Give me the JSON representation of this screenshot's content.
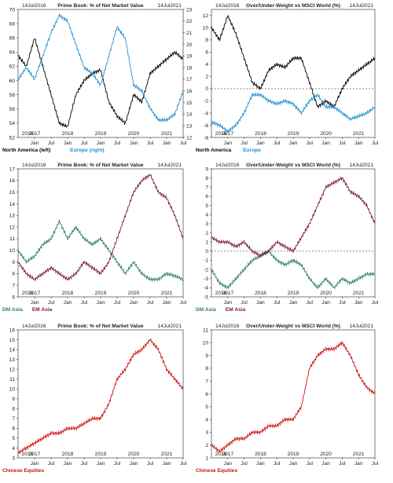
{
  "chart_data": [
    {
      "type": "line",
      "title": "Prime Book: % of Net Market Value",
      "start_label": "14Jul2016",
      "end_label": "14Jul2021",
      "ylim": [
        52,
        70
      ],
      "yticks": [
        52,
        54,
        56,
        58,
        60,
        62,
        64,
        66,
        68,
        70
      ],
      "ylim_right": [
        12,
        23
      ],
      "yticks_right": [
        12,
        13,
        14,
        15,
        16,
        17,
        18,
        19,
        20,
        21,
        22,
        23
      ],
      "x_year_labels": [
        "2016",
        "2017",
        "2018",
        "2019",
        "2020",
        "2021"
      ],
      "x_month_labels": [
        "Jan",
        "Jul",
        "Jan",
        "Jul",
        "Jan",
        "Jul",
        "Jan",
        "Jul",
        "Jan",
        "Jul"
      ],
      "series": [
        {
          "name": "North America (left)",
          "color": "#000000",
          "axis": "left",
          "x": [
            "2016-07",
            "2016-10",
            "2017-01",
            "2017-04",
            "2017-07",
            "2017-10",
            "2018-01",
            "2018-04",
            "2018-07",
            "2018-10",
            "2019-01",
            "2019-04",
            "2019-07",
            "2019-10",
            "2020-01",
            "2020-04",
            "2020-07",
            "2020-10",
            "2021-01",
            "2021-04",
            "2021-07"
          ],
          "values": [
            63.5,
            62,
            66,
            62,
            58,
            54,
            53.5,
            58,
            60,
            61,
            61.5,
            57,
            55,
            54,
            58,
            57,
            61,
            62,
            63,
            64,
            63
          ]
        },
        {
          "name": "Europe (right)",
          "color": "#1f8fd0",
          "axis": "right",
          "x": [
            "2016-07",
            "2016-10",
            "2017-01",
            "2017-04",
            "2017-07",
            "2017-10",
            "2018-01",
            "2018-04",
            "2018-07",
            "2018-10",
            "2019-01",
            "2019-04",
            "2019-07",
            "2019-10",
            "2020-01",
            "2020-04",
            "2020-07",
            "2020-10",
            "2021-01",
            "2021-04",
            "2021-07"
          ],
          "values": [
            17,
            18,
            17,
            19,
            21,
            22.5,
            22,
            20,
            18,
            17.5,
            16.5,
            19,
            21.5,
            20.5,
            16.5,
            16,
            14.5,
            13.5,
            13.5,
            14,
            16
          ]
        }
      ]
    },
    {
      "type": "line",
      "title": "Over/Under-Weight vs MSCI World (%)",
      "start_label": "14Jul2016",
      "end_label": "14Jul2021",
      "ylim": [
        -8,
        13
      ],
      "yticks": [
        -8,
        -6,
        -4,
        -2,
        0,
        2,
        4,
        6,
        8,
        10,
        12
      ],
      "x_year_labels": [
        "2016",
        "2017",
        "2018",
        "2019",
        "2020",
        "2021"
      ],
      "x_month_labels": [
        "Jan",
        "Jul",
        "Jan",
        "Jul",
        "Jan",
        "Jul",
        "Jan",
        "Jul",
        "Jan",
        "Jul"
      ],
      "series": [
        {
          "name": "North America",
          "color": "#000000",
          "x": [
            "2016-07",
            "2016-10",
            "2017-01",
            "2017-04",
            "2017-07",
            "2017-10",
            "2018-01",
            "2018-04",
            "2018-07",
            "2018-10",
            "2019-01",
            "2019-04",
            "2019-07",
            "2019-10",
            "2020-01",
            "2020-04",
            "2020-07",
            "2020-10",
            "2021-01",
            "2021-04",
            "2021-07"
          ],
          "values": [
            10,
            8,
            12,
            9,
            5,
            1,
            0,
            3,
            4,
            3.5,
            5,
            5,
            1,
            -3,
            -2,
            -3,
            0,
            2,
            3,
            4,
            5
          ]
        },
        {
          "name": "Europe",
          "color": "#1f8fd0",
          "x": [
            "2016-07",
            "2016-10",
            "2017-01",
            "2017-04",
            "2017-07",
            "2017-10",
            "2018-01",
            "2018-04",
            "2018-07",
            "2018-10",
            "2019-01",
            "2019-04",
            "2019-07",
            "2019-10",
            "2020-01",
            "2020-04",
            "2020-07",
            "2020-10",
            "2021-01",
            "2021-04",
            "2021-07"
          ],
          "values": [
            -5.5,
            -6,
            -7,
            -6,
            -4,
            -1,
            -1,
            -2,
            -2.5,
            -2,
            -2.5,
            -4,
            -2,
            -1,
            -3,
            -3,
            -4,
            -5,
            -4.5,
            -4,
            -3
          ]
        }
      ]
    },
    {
      "type": "line",
      "title": "Prime Book: % of Net Market Value",
      "start_label": "14Jul2016",
      "end_label": "14Jul2021",
      "ylim": [
        6,
        17
      ],
      "yticks": [
        6,
        7,
        8,
        9,
        10,
        11,
        12,
        13,
        14,
        15,
        16,
        17
      ],
      "x_year_labels": [
        "2016",
        "2017",
        "2018",
        "2019",
        "2020",
        "2021"
      ],
      "x_month_labels": [
        "Jan",
        "Jul",
        "Jan",
        "Jul",
        "Jan",
        "Jul",
        "Jan",
        "Jul",
        "Jan",
        "Jul"
      ],
      "series": [
        {
          "name": "DM Asia",
          "color": "#2e7d6e",
          "x": [
            "2016-07",
            "2016-10",
            "2017-01",
            "2017-04",
            "2017-07",
            "2017-10",
            "2018-01",
            "2018-04",
            "2018-07",
            "2018-10",
            "2019-01",
            "2019-04",
            "2019-07",
            "2019-10",
            "2020-01",
            "2020-04",
            "2020-07",
            "2020-10",
            "2021-01",
            "2021-04",
            "2021-07"
          ],
          "values": [
            10,
            9,
            9.5,
            10.5,
            11,
            12.5,
            11,
            12,
            11,
            10.5,
            11,
            10,
            9,
            8,
            9,
            8,
            7.5,
            7.5,
            8,
            7.8,
            7.5
          ]
        },
        {
          "name": "EM Asia",
          "color": "#7a1f2b",
          "x": [
            "2016-07",
            "2016-10",
            "2017-01",
            "2017-04",
            "2017-07",
            "2017-10",
            "2018-01",
            "2018-04",
            "2018-07",
            "2018-10",
            "2019-01",
            "2019-04",
            "2019-07",
            "2019-10",
            "2020-01",
            "2020-04",
            "2020-07",
            "2020-10",
            "2021-01",
            "2021-04",
            "2021-07"
          ],
          "values": [
            9,
            8,
            7.5,
            8,
            8.5,
            8,
            7.5,
            8,
            9,
            8.5,
            8,
            9,
            11,
            13,
            15,
            16,
            16.5,
            15,
            14.5,
            13,
            11
          ]
        }
      ]
    },
    {
      "type": "line",
      "title": "Over/Under-Weight vs MSCI World (%)",
      "start_label": "14Jul2016",
      "end_label": "14Jul2021",
      "ylim": [
        -5,
        9
      ],
      "yticks": [
        -5,
        -4,
        -3,
        -2,
        -1,
        0,
        1,
        2,
        3,
        4,
        5,
        6,
        7,
        8,
        9
      ],
      "x_year_labels": [
        "2016",
        "2017",
        "2018",
        "2019",
        "2020",
        "2021"
      ],
      "x_month_labels": [
        "Jan",
        "Jul",
        "Jan",
        "Jul",
        "Jan",
        "Jul",
        "Jan",
        "Jul",
        "Jan",
        "Jul"
      ],
      "series": [
        {
          "name": "DM Asia",
          "color": "#2e7d6e",
          "x": [
            "2016-07",
            "2016-10",
            "2017-01",
            "2017-04",
            "2017-07",
            "2017-10",
            "2018-01",
            "2018-04",
            "2018-07",
            "2018-10",
            "2019-01",
            "2019-04",
            "2019-07",
            "2019-10",
            "2020-01",
            "2020-04",
            "2020-07",
            "2020-10",
            "2021-01",
            "2021-04",
            "2021-07"
          ],
          "values": [
            -2,
            -3.5,
            -4,
            -3,
            -2,
            -1,
            -0.5,
            0,
            -1,
            -1.5,
            -1,
            -1.5,
            -3,
            -4,
            -3,
            -4,
            -3,
            -3.5,
            -3,
            -2.5,
            -2.5
          ]
        },
        {
          "name": "EM Asia",
          "color": "#7a1f2b",
          "x": [
            "2016-07",
            "2016-10",
            "2017-01",
            "2017-04",
            "2017-07",
            "2017-10",
            "2018-01",
            "2018-04",
            "2018-07",
            "2018-10",
            "2019-01",
            "2019-04",
            "2019-07",
            "2019-10",
            "2020-01",
            "2020-04",
            "2020-07",
            "2020-10",
            "2021-01",
            "2021-04",
            "2021-07"
          ],
          "values": [
            1.5,
            1,
            1,
            0.5,
            1,
            0,
            -0.5,
            0,
            1,
            0.5,
            0,
            1.5,
            3,
            5,
            7,
            7.5,
            8,
            6.5,
            6,
            5,
            3
          ]
        }
      ]
    },
    {
      "type": "line",
      "title": "Prime Book: % of Net Market Value",
      "start_label": "14Jul2016",
      "end_label": "14Jul2021",
      "ylim": [
        3,
        16
      ],
      "yticks": [
        3,
        4,
        5,
        6,
        7,
        8,
        9,
        10,
        11,
        12,
        13,
        14,
        15,
        16
      ],
      "x_year_labels": [
        "2016",
        "2017",
        "2018",
        "2019",
        "2020",
        "2021"
      ],
      "x_month_labels": [
        "Jan",
        "Jul",
        "Jan",
        "Jul",
        "Jan",
        "Jul",
        "Jan",
        "Jul",
        "Jan",
        "Jul"
      ],
      "series": [
        {
          "name": "Chinese Equities",
          "color": "#cc1111",
          "x": [
            "2016-07",
            "2016-10",
            "2017-01",
            "2017-04",
            "2017-07",
            "2017-10",
            "2018-01",
            "2018-04",
            "2018-07",
            "2018-10",
            "2019-01",
            "2019-04",
            "2019-07",
            "2019-10",
            "2020-01",
            "2020-04",
            "2020-07",
            "2020-10",
            "2021-01",
            "2021-04",
            "2021-07"
          ],
          "values": [
            3.5,
            4,
            4.5,
            5,
            5.5,
            5.5,
            6,
            6,
            6.5,
            7,
            7,
            8.5,
            11,
            12,
            13.5,
            14,
            15,
            14,
            12,
            11,
            10
          ]
        }
      ]
    },
    {
      "type": "line",
      "title": "Over/Under-Weight vs MSCI World (%)",
      "start_label": "14Jul2016",
      "end_label": "14Jul2021",
      "ylim": [
        1,
        11
      ],
      "yticks": [
        1,
        2,
        3,
        4,
        5,
        6,
        7,
        8,
        9,
        10,
        11
      ],
      "x_year_labels": [
        "2016",
        "2017",
        "2018",
        "2019",
        "2020",
        "2021"
      ],
      "x_month_labels": [
        "Jan",
        "Jul",
        "Jan",
        "Jul",
        "Jan",
        "Jul",
        "Jan",
        "Jul",
        "Jan",
        "Jul"
      ],
      "series": [
        {
          "name": "Chinese Equities",
          "color": "#cc1111",
          "x": [
            "2016-07",
            "2016-10",
            "2017-01",
            "2017-04",
            "2017-07",
            "2017-10",
            "2018-01",
            "2018-04",
            "2018-07",
            "2018-10",
            "2019-01",
            "2019-04",
            "2019-07",
            "2019-10",
            "2020-01",
            "2020-04",
            "2020-07",
            "2020-10",
            "2021-01",
            "2021-04",
            "2021-07"
          ],
          "values": [
            2,
            1.5,
            2,
            2.5,
            2.5,
            3,
            3,
            3.5,
            3.5,
            4,
            4,
            5,
            8,
            9,
            9.5,
            9.5,
            10,
            9,
            7.5,
            6.5,
            6
          ]
        }
      ]
    }
  ]
}
